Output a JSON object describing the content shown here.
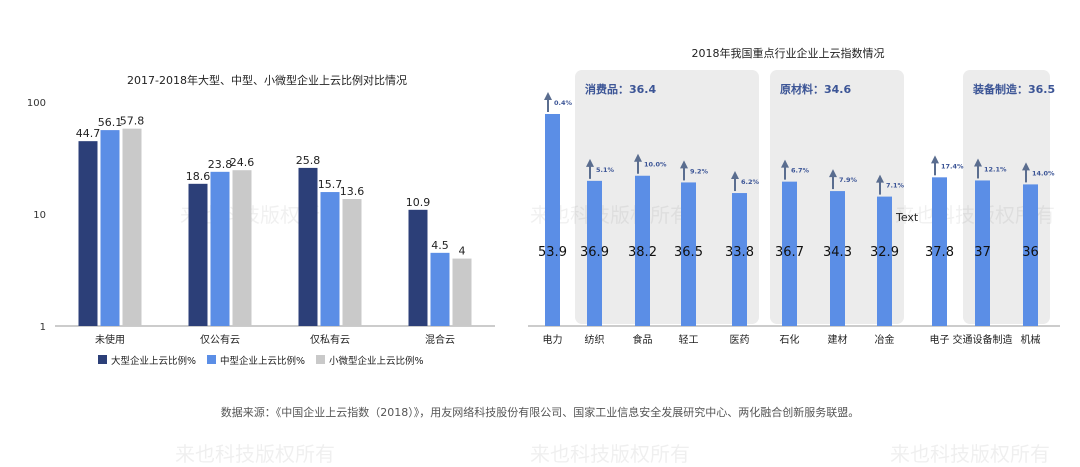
{
  "chart_data": [
    {
      "type": "bar",
      "title": "2017-2018年大型、中型、小微型企业上云比例对比情况",
      "scale": "log",
      "ylim": [
        1,
        100
      ],
      "yticks": [
        "1",
        "10",
        "100"
      ],
      "categories": [
        "未使用",
        "仅公有云",
        "仅私有云",
        "混合云"
      ],
      "series": [
        {
          "name": "大型企业上云比例%",
          "color": "#2c3f78",
          "values": [
            44.7,
            18.6,
            25.8,
            10.9
          ],
          "labels": [
            "44.7",
            "18.6",
            "25.8",
            "10.9"
          ]
        },
        {
          "name": "中型企业上云比例%",
          "color": "#5b8ee6",
          "values": [
            56.1,
            23.8,
            15.7,
            4.5
          ],
          "labels": [
            "56.1",
            "23.8",
            "15.7",
            "4.5"
          ]
        },
        {
          "name": "小微型企业上云比例%",
          "color": "#c9c9c9",
          "values": [
            57.8,
            24.6,
            13.6,
            4
          ],
          "labels": [
            "57.8",
            "24.6",
            "13.6",
            "4"
          ]
        }
      ],
      "legend_position": "bottom"
    },
    {
      "type": "bar",
      "title": "2018年我国重点行业企业上云指数情况",
      "categories": [
        "电力",
        "纺织",
        "食品",
        "轻工",
        "医药",
        "石化",
        "建材",
        "冶金",
        "电子",
        "交通设备制造",
        "机械"
      ],
      "values": [
        53.9,
        36.9,
        38.2,
        36.5,
        33.8,
        36.7,
        34.3,
        32.9,
        37.8,
        37,
        36
      ],
      "value_labels": [
        "53.9",
        "36.9",
        "38.2",
        "36.5",
        "33.8",
        "36.7",
        "34.3",
        "32.9",
        "37.8",
        "37",
        "36"
      ],
      "growth_labels": [
        "0.4%",
        "5.1%",
        "10.0%",
        "9.2%",
        "6.2%",
        "6.7%",
        "7.9%",
        "7.1%",
        "17.4%",
        "12.1%",
        "14.0%"
      ],
      "color": "#5b8ee6",
      "arrow_color": "#5a6d8f",
      "groups": [
        {
          "label": "消费品：36.4",
          "first": 1,
          "last": 4
        },
        {
          "label": "原材料：34.6",
          "first": 5,
          "last": 7
        },
        {
          "label": "装备制造：36.5",
          "first": 9,
          "last": 10
        }
      ],
      "annotation": "Text",
      "ylim": [
        0,
        60
      ]
    }
  ],
  "watermark": "来也科技版权所有",
  "source_note": "数据来源：《中国企业上云指数（2018）》，用友网络科技股份有限公司、国家工业信息安全发展研究中心、两化融合创新服务联盟。"
}
